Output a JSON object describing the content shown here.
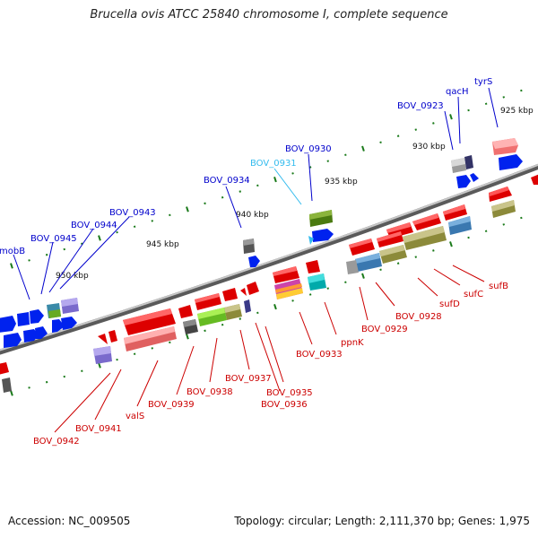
{
  "title": "Brucella ovis ATCC 25840 chromosome I, complete sequence",
  "footer": {
    "accession": "Accession: NC_009505",
    "summary": "Topology: circular; Length: 2,111,370 bp; Genes: 1,975"
  },
  "scale_labels": [
    "925 kbp",
    "930 kbp",
    "935 kbp",
    "940 kbp",
    "945 kbp",
    "950 kbp"
  ],
  "colors": {
    "forward_label": "#0000cc",
    "reverse_label": "#cc0000",
    "highlight_label": "#33bbee",
    "tick": "#1a7a1a",
    "backbone": "#8a8a8a"
  },
  "forward_labels": [
    "tyrS",
    "qacH",
    "BOV_0923",
    "BOV_0930",
    "BOV_0931",
    "BOV_0934",
    "BOV_0943",
    "BOV_0944",
    "BOV_0945",
    "mobB"
  ],
  "reverse_labels": [
    "sufB",
    "sufC",
    "sufD",
    "BOV_0928",
    "BOV_0929",
    "ppnK",
    "BOV_0933",
    "BOV_0935",
    "BOV_0936",
    "BOV_0937",
    "BOV_0938",
    "BOV_0939",
    "valS",
    "BOV_0941",
    "BOV_0942"
  ]
}
